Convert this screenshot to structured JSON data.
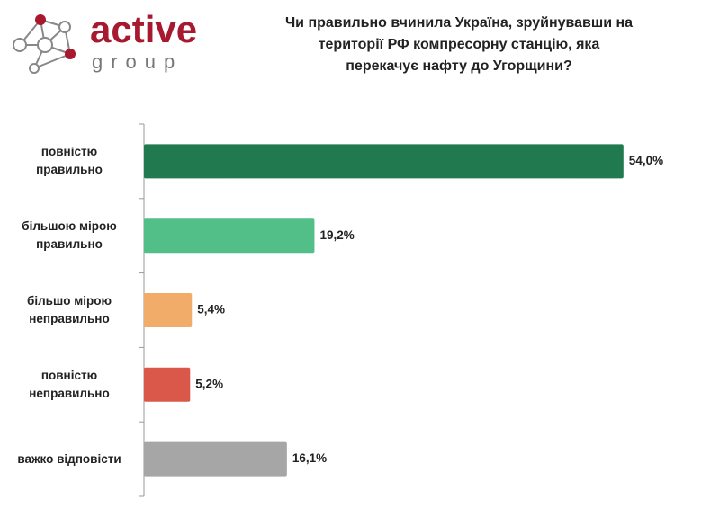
{
  "logo": {
    "name": "active",
    "subname": "group"
  },
  "chart_data": {
    "type": "bar",
    "orientation": "horizontal",
    "title": "Чи правильно вчинила Україна, зруйнувавши на\nтериторії РФ компресорну станцію, яка\nперекачує нафту до Угорщини?",
    "categories": [
      "повністю\nправильно",
      "більшою мірою\nправильно",
      "більшо мірою\nнеправильно",
      "повністю\nнеправильно",
      "важко відповісти"
    ],
    "values": [
      54.0,
      19.2,
      5.4,
      5.2,
      16.1
    ],
    "value_labels": [
      "54,0%",
      "19,2%",
      "5,4%",
      "5,2%",
      "16,1%"
    ],
    "colors": [
      "#217a4f",
      "#52be88",
      "#f2ac6a",
      "#d9584a",
      "#a6a6a6"
    ],
    "xlim": [
      0,
      60
    ]
  }
}
